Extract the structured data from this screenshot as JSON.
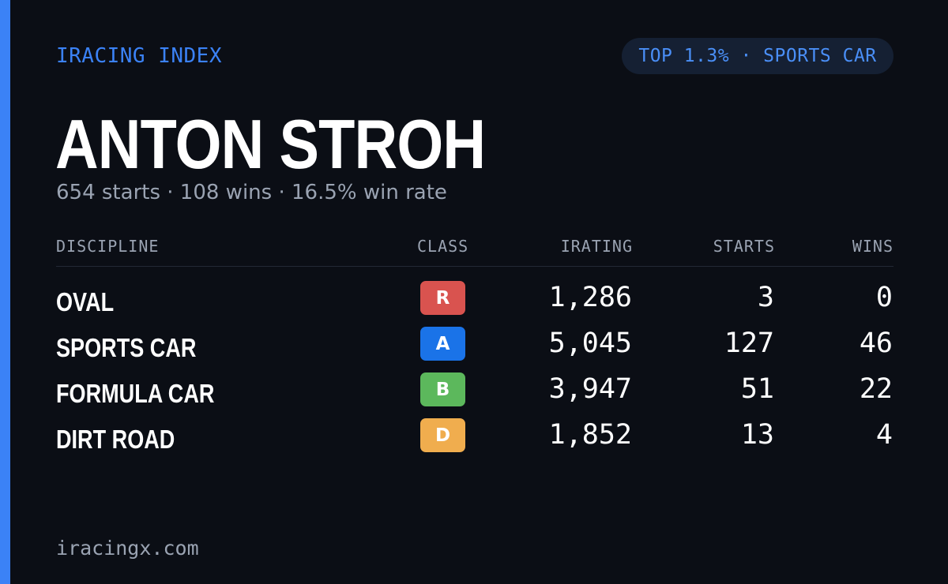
{
  "brand": "IRACING INDEX",
  "rank_badge": "TOP 1.3% · SPORTS CAR",
  "driver": {
    "name": "ANTON STROH",
    "summary": "654 starts · 108 wins · 16.5% win rate"
  },
  "table": {
    "headers": {
      "discipline": "DISCIPLINE",
      "class": "CLASS",
      "irating": "IRATING",
      "starts": "STARTS",
      "wins": "WINS"
    },
    "rows": [
      {
        "discipline": "OVAL",
        "class": "R",
        "class_color": "#d9534f",
        "irating": "1,286",
        "starts": "3",
        "wins": "0"
      },
      {
        "discipline": "SPORTS CAR",
        "class": "A",
        "class_color": "#1a73e8",
        "irating": "5,045",
        "starts": "127",
        "wins": "46"
      },
      {
        "discipline": "FORMULA CAR",
        "class": "B",
        "class_color": "#5cb85c",
        "irating": "3,947",
        "starts": "51",
        "wins": "22"
      },
      {
        "discipline": "DIRT ROAD",
        "class": "D",
        "class_color": "#f0ad4e",
        "irating": "1,852",
        "starts": "13",
        "wins": "4"
      }
    ]
  },
  "footer": "iracingx.com",
  "colors": {
    "accent": "#3b82f6",
    "background": "#0b0e15",
    "muted_text": "#9aa3b2"
  }
}
